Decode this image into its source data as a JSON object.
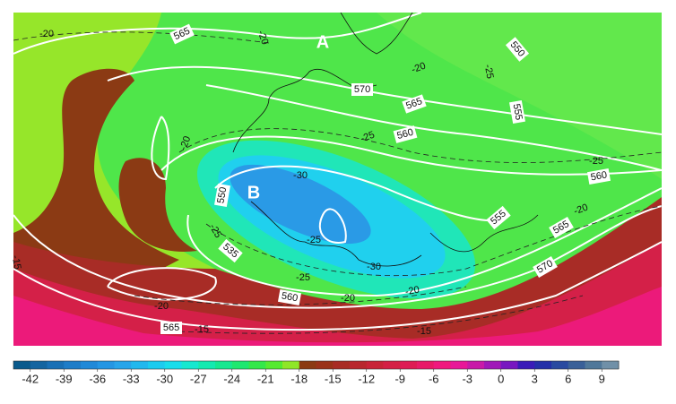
{
  "map": {
    "markers": [
      "A",
      "B"
    ],
    "contour_labels": [
      "565",
      "-20",
      "-20",
      "570",
      "565",
      "-20",
      "-25",
      "550",
      "555",
      "560",
      "-25",
      "-20",
      "-30",
      "-25",
      "560",
      "550",
      "-25",
      "535",
      "-25",
      "-30",
      "-25",
      "555",
      "565",
      "-20",
      "570",
      "560",
      "-20",
      "-20",
      "-20",
      "565",
      "-15",
      "-15",
      "-15"
    ]
  },
  "colorbar": {
    "range": [
      -43.5,
      10.5
    ],
    "ticks": [
      -42,
      -39,
      -36,
      -33,
      -30,
      -27,
      -24,
      -21,
      -18,
      -15,
      -12,
      -9,
      -6,
      -3,
      0,
      3,
      6,
      9
    ],
    "colors": [
      "#0a5a8c",
      "#1565a0",
      "#1a70b5",
      "#1f7dc8",
      "#2189d8",
      "#2596e3",
      "#28a5ea",
      "#22b8ee",
      "#1ccbef",
      "#18ddeb",
      "#16e8d0",
      "#14eab0",
      "#16e890",
      "#1ee870",
      "#33e84a",
      "#55ea30",
      "#8fe628",
      "#8b3a12",
      "#9a3218",
      "#a82c24",
      "#b8282e",
      "#c82438",
      "#d42045",
      "#de1c55",
      "#e81a68",
      "#f0187e",
      "#e81898",
      "#c81aa8",
      "#a018b8",
      "#7818c0",
      "#3a1cb8",
      "#2430a8",
      "#2a4aa0",
      "#3a6098",
      "#50789a",
      "#7090a8"
    ]
  }
}
